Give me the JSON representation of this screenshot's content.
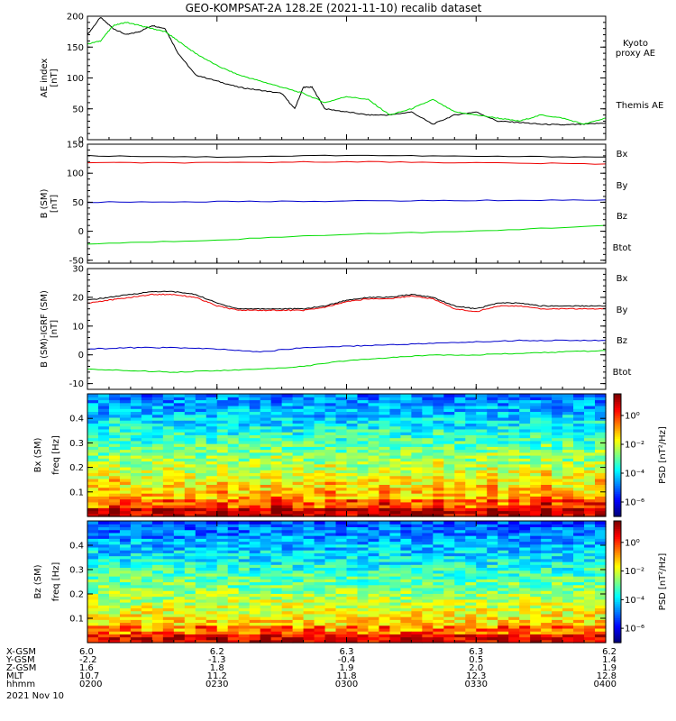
{
  "title": "GEO-KOMPSAT-2A 128.2E (2021-11-10) recalib dataset",
  "x_ticks": [
    "0200",
    "0230",
    "0300",
    "0330",
    "0400"
  ],
  "time_range_hhmm": [
    "0200",
    "0400"
  ],
  "colors": {
    "black": "#000000",
    "green": "#00dd00",
    "red": "#ee0000",
    "blue": "#0000cc"
  },
  "chart_data": [
    {
      "type": "line",
      "id": "ae",
      "ylabel": "AE index",
      "yunit": "[nT]",
      "ylim": [
        0,
        200
      ],
      "yticks": [
        "0",
        "50",
        "100",
        "150",
        "200"
      ],
      "legend": [
        {
          "text": "Kyoto proxy AE",
          "lines": [
            "Kyoto",
            "proxy AE"
          ],
          "color": "#00dd00"
        },
        {
          "text": "Themis AE",
          "lines": [
            "Themis AE"
          ],
          "color": "#000000"
        }
      ],
      "series": [
        {
          "name": "Themis AE",
          "color": "#000000",
          "x": [
            0,
            3,
            6,
            9,
            12,
            15,
            18,
            21,
            25,
            30,
            35,
            40,
            45,
            48,
            50,
            52,
            55,
            60,
            65,
            70,
            75,
            80,
            85,
            90,
            95,
            100,
            105,
            110,
            115,
            120
          ],
          "y": [
            170,
            198,
            180,
            170,
            175,
            185,
            180,
            140,
            105,
            95,
            85,
            80,
            75,
            50,
            85,
            85,
            50,
            45,
            40,
            40,
            45,
            25,
            40,
            45,
            30,
            28,
            25,
            24,
            25,
            27
          ]
        },
        {
          "name": "Kyoto proxy AE",
          "color": "#00dd00",
          "x": [
            0,
            3,
            6,
            9,
            12,
            15,
            18,
            21,
            25,
            30,
            35,
            40,
            45,
            50,
            55,
            60,
            65,
            70,
            75,
            80,
            85,
            90,
            95,
            100,
            105,
            110,
            115,
            120
          ],
          "y": [
            155,
            160,
            185,
            190,
            185,
            180,
            175,
            160,
            140,
            120,
            105,
            95,
            85,
            75,
            60,
            70,
            65,
            40,
            50,
            65,
            45,
            40,
            35,
            30,
            40,
            35,
            25,
            35
          ]
        }
      ]
    },
    {
      "type": "line",
      "id": "bsm",
      "ylabel": "B (SM)",
      "yunit": "[nT]",
      "ylim": [
        -55,
        150
      ],
      "yticks": [
        "-50",
        "0",
        "50",
        "100",
        "150"
      ],
      "legend": [
        {
          "text": "Bx",
          "color": "#0000cc"
        },
        {
          "text": "By",
          "color": "#00dd00"
        },
        {
          "text": "Bz",
          "color": "#ee0000"
        },
        {
          "text": "Btot",
          "color": "#000000"
        }
      ],
      "series": [
        {
          "name": "Btot",
          "color": "#000000",
          "x": [
            0,
            30,
            60,
            90,
            120
          ],
          "y": [
            130,
            128,
            131,
            129,
            128
          ]
        },
        {
          "name": "Bz",
          "color": "#ee0000",
          "x": [
            0,
            30,
            60,
            90,
            120
          ],
          "y": [
            118,
            118,
            120,
            118,
            116
          ]
        },
        {
          "name": "Bx",
          "color": "#0000cc",
          "x": [
            0,
            30,
            60,
            90,
            120
          ],
          "y": [
            50,
            51,
            52,
            53,
            54
          ]
        },
        {
          "name": "By",
          "color": "#00dd00",
          "x": [
            0,
            30,
            60,
            90,
            120
          ],
          "y": [
            -22,
            -15,
            -5,
            0,
            10
          ]
        }
      ]
    },
    {
      "type": "line",
      "id": "bsmigrf",
      "ylabel": "B (SM)-IGRF (SM)",
      "yunit": "[nT]",
      "ylim": [
        -12,
        30
      ],
      "yticks": [
        "-10",
        "0",
        "10",
        "20",
        "30"
      ],
      "legend": [
        {
          "text": "Bx",
          "color": "#0000cc"
        },
        {
          "text": "By",
          "color": "#00dd00"
        },
        {
          "text": "Bz",
          "color": "#ee0000"
        },
        {
          "text": "Btot",
          "color": "#000000"
        }
      ],
      "series": [
        {
          "name": "Btot",
          "color": "#000000",
          "x": [
            0,
            5,
            10,
            15,
            20,
            25,
            30,
            35,
            40,
            45,
            50,
            55,
            60,
            65,
            70,
            75,
            80,
            85,
            90,
            95,
            100,
            105,
            110,
            115,
            120
          ],
          "y": [
            19,
            20,
            21,
            22,
            22,
            21,
            18,
            16,
            16,
            16,
            16,
            17,
            19,
            20,
            20,
            21,
            20,
            17,
            16,
            18,
            18,
            17,
            17,
            17,
            17
          ]
        },
        {
          "name": "Bz",
          "color": "#ee0000",
          "x": [
            0,
            5,
            10,
            15,
            20,
            25,
            30,
            35,
            40,
            45,
            50,
            55,
            60,
            65,
            70,
            75,
            80,
            85,
            90,
            95,
            100,
            105,
            110,
            115,
            120
          ],
          "y": [
            18,
            19,
            20,
            21,
            21,
            20,
            17,
            15.5,
            15.5,
            15.5,
            15.5,
            16.5,
            18.5,
            19.5,
            19.5,
            20.5,
            19.5,
            16,
            15,
            17,
            17,
            16,
            16,
            16,
            16
          ]
        },
        {
          "name": "Bx",
          "color": "#0000cc",
          "x": [
            0,
            10,
            20,
            30,
            40,
            50,
            60,
            70,
            80,
            90,
            100,
            110,
            120
          ],
          "y": [
            2,
            2.5,
            2.5,
            2,
            1,
            2.5,
            3,
            3.5,
            4,
            4.5,
            5,
            5,
            5
          ]
        },
        {
          "name": "By",
          "color": "#00dd00",
          "x": [
            0,
            10,
            20,
            30,
            40,
            50,
            60,
            70,
            80,
            90,
            100,
            110,
            120
          ],
          "y": [
            -5,
            -5.5,
            -6,
            -5.5,
            -5,
            -4,
            -2,
            -1,
            0,
            0,
            0.5,
            1,
            1.5
          ]
        }
      ]
    },
    {
      "type": "heatmap",
      "id": "bxspec",
      "ylabel": "Bx (SM)",
      "yunit": "freq [Hz]",
      "ylim": [
        0,
        0.5
      ],
      "yticks": [
        "0.1",
        "0.2",
        "0.3",
        "0.4"
      ],
      "colorbar_label": "PSD [nT²/Hz]",
      "colorbar_ticks": [
        "10⁰",
        "10⁻²",
        "10⁻⁴",
        "10⁻⁶"
      ],
      "colorbar_exponents": [
        0,
        -2,
        -4,
        -6
      ],
      "colorbar_range": [
        -7,
        1.5
      ]
    },
    {
      "type": "heatmap",
      "id": "bzspec",
      "ylabel": "Bz (SM)",
      "yunit": "freq [Hz]",
      "ylim": [
        0,
        0.5
      ],
      "yticks": [
        "0.1",
        "0.2",
        "0.3",
        "0.4"
      ],
      "colorbar_label": "PSD [nT²/Hz]",
      "colorbar_ticks": [
        "10⁰",
        "10⁻²",
        "10⁻⁴",
        "10⁻⁶"
      ],
      "colorbar_exponents": [
        0,
        -2,
        -4,
        -6
      ],
      "colorbar_range": [
        -7,
        1.5
      ]
    }
  ],
  "ephemeris": {
    "rows": [
      {
        "label": "X-GSM",
        "values": [
          "6.0",
          "6.2",
          "6.3",
          "6.3",
          "6.2"
        ]
      },
      {
        "label": "Y-GSM",
        "values": [
          "-2.2",
          "-1.3",
          "-0.4",
          "0.5",
          "1.4"
        ]
      },
      {
        "label": "Z-GSM",
        "values": [
          "1.6",
          "1.8",
          "1.9",
          "2.0",
          "1.9"
        ]
      },
      {
        "label": "MLT",
        "values": [
          "10.7",
          "11.2",
          "11.8",
          "12.3",
          "12.8"
        ]
      },
      {
        "label": "hhmm",
        "values": [
          "0200",
          "0230",
          "0300",
          "0330",
          "0400"
        ]
      }
    ],
    "date": "2021 Nov 10"
  }
}
